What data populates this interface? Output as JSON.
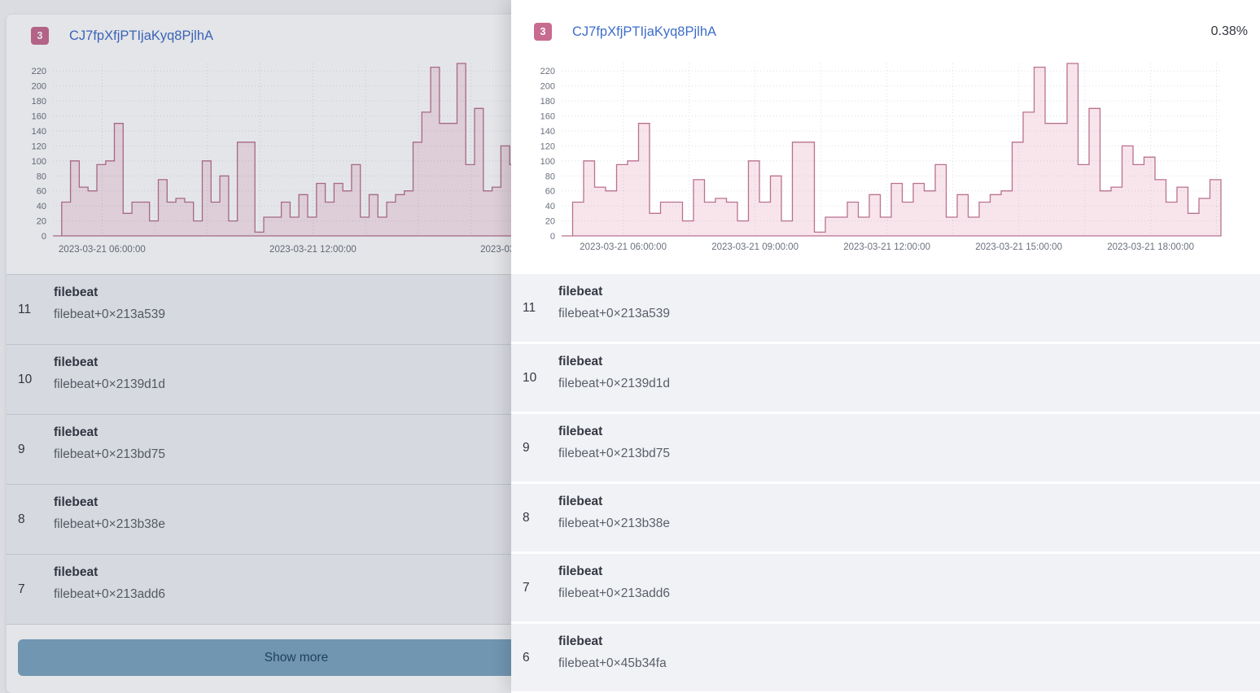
{
  "page": {
    "background_card": {
      "badge": "3",
      "title": "CJ7fpXfjPTIjaKyq8PjlhA",
      "show_more_label": "Show more",
      "frames_visible": 5
    }
  },
  "flyout": {
    "badge": "3",
    "title": "CJ7fpXfjPTIjaKyq8PjlhA",
    "percent": "0.38%",
    "frames_visible": 6
  },
  "frames": [
    {
      "rank": "11",
      "name": "filebeat",
      "address": "filebeat+0×213a539"
    },
    {
      "rank": "10",
      "name": "filebeat",
      "address": "filebeat+0×2139d1d"
    },
    {
      "rank": "9",
      "name": "filebeat",
      "address": "filebeat+0×213bd75"
    },
    {
      "rank": "8",
      "name": "filebeat",
      "address": "filebeat+0×213b38e"
    },
    {
      "rank": "7",
      "name": "filebeat",
      "address": "filebeat+0×213add6"
    },
    {
      "rank": "6",
      "name": "filebeat",
      "address": "filebeat+0×45b34fa"
    }
  ],
  "chart_data": {
    "type": "area",
    "subtype": "step-histogram",
    "title": "",
    "xlabel": "",
    "ylabel": "",
    "ylim": [
      0,
      230
    ],
    "yticks": [
      0,
      20,
      40,
      60,
      80,
      100,
      120,
      140,
      160,
      180,
      200,
      220
    ],
    "start_hour": 4.6,
    "bucket_minutes": 15,
    "x_unit": "time on 2023-03-21",
    "grid": true,
    "legend": false,
    "xticks_left": [
      {
        "hour": 6,
        "label": "2023-03-21 06:00:00"
      },
      {
        "hour": 12,
        "label": "2023-03-21 12:00:00"
      },
      {
        "hour": 18,
        "label": "2023-03-21 18:00:00"
      }
    ],
    "xticks_right": [
      {
        "hour": 6,
        "label": "2023-03-21 06:00:00"
      },
      {
        "hour": 9,
        "label": "2023-03-21 09:00:00"
      },
      {
        "hour": 12,
        "label": "2023-03-21 12:00:00"
      },
      {
        "hour": 15,
        "label": "2023-03-21 15:00:00"
      },
      {
        "hour": 18,
        "label": "2023-03-21 18:00:00"
      }
    ],
    "series": [
      {
        "name": "CJ7fpXfjPTIjaKyq8PjlhA",
        "values": [
          0,
          45,
          100,
          65,
          60,
          95,
          100,
          150,
          30,
          45,
          45,
          20,
          75,
          45,
          50,
          45,
          20,
          100,
          45,
          80,
          20,
          125,
          125,
          5,
          25,
          25,
          45,
          25,
          55,
          25,
          70,
          45,
          70,
          60,
          95,
          25,
          55,
          25,
          45,
          55,
          60,
          125,
          165,
          225,
          150,
          150,
          230,
          95,
          170,
          60,
          65,
          120,
          95,
          105,
          75,
          45,
          65,
          30,
          50,
          75
        ]
      }
    ],
    "area_color": "#d36086",
    "area_fill_opacity": 0.16,
    "line_color": "#b9718f"
  },
  "colors": {
    "badge_bg": "#c76b90",
    "link_blue": "#3e6dc9",
    "axis_text": "#69707d",
    "row_bg": "#f1f2f6",
    "row_name_text": "#343741",
    "row_address_text": "#5a6069",
    "show_more_bg": "#7ba6c2",
    "show_more_text": "#24455f"
  }
}
